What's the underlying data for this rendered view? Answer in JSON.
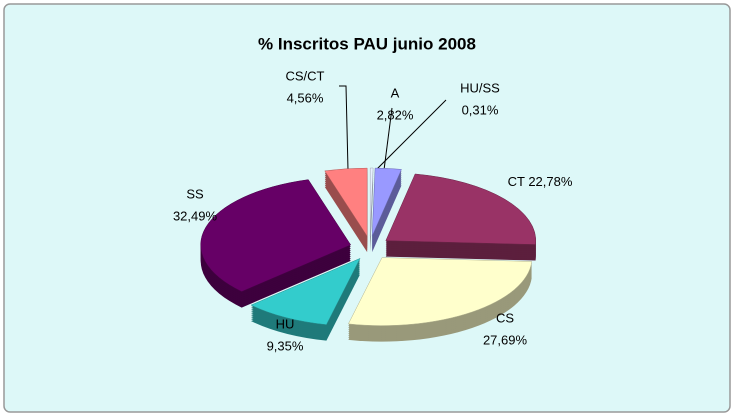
{
  "chart_data": {
    "type": "pie",
    "title": "% Inscritos PAU junio 2008",
    "categories": [
      "HU/SS",
      "A",
      "CT",
      "CS",
      "HU",
      "SS",
      "CS/CT"
    ],
    "values": [
      0.31,
      2.82,
      22.78,
      27.69,
      9.35,
      32.49,
      4.56
    ],
    "value_labels": [
      "0,31%",
      "2,82%",
      "22,78%",
      "27,69%",
      "9,35%",
      "32,49%",
      "4,56%"
    ],
    "colors": [
      "#E6F0FF",
      "#9999FF",
      "#993366",
      "#FFFFCC",
      "#33CCCC",
      "#660066",
      "#FF8080"
    ]
  }
}
